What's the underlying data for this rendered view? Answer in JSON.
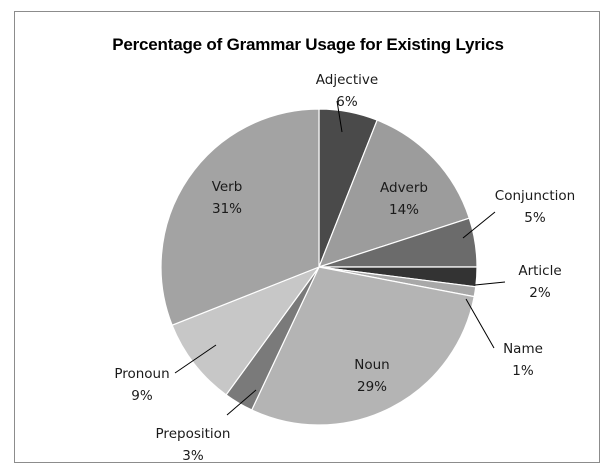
{
  "chart_data": {
    "type": "pie",
    "title": "Percentage of Grammar Usage for Existing Lyrics",
    "start_angle_deg": 0,
    "direction": "clockwise",
    "slices": [
      {
        "label": "Adjective",
        "value": 6,
        "value_label": "6%",
        "color": "#4a4a4a"
      },
      {
        "label": "Adverb",
        "value": 14,
        "value_label": "14%",
        "color": "#9c9c9c"
      },
      {
        "label": "Conjunction",
        "value": 5,
        "value_label": "5%",
        "color": "#6b6b6b"
      },
      {
        "label": "Article",
        "value": 2,
        "value_label": "2%",
        "color": "#333333"
      },
      {
        "label": "Name",
        "value": 1,
        "value_label": "1%",
        "color": "#a8a8a8"
      },
      {
        "label": "Noun",
        "value": 29,
        "value_label": "29%",
        "color": "#b4b4b4"
      },
      {
        "label": "Preposition",
        "value": 3,
        "value_label": "3%",
        "color": "#7a7a7a"
      },
      {
        "label": "Pronoun",
        "value": 9,
        "value_label": "9%",
        "color": "#c7c7c7"
      },
      {
        "label": "Verb",
        "value": 31,
        "value_label": "31%",
        "color": "#a3a3a3"
      }
    ]
  }
}
